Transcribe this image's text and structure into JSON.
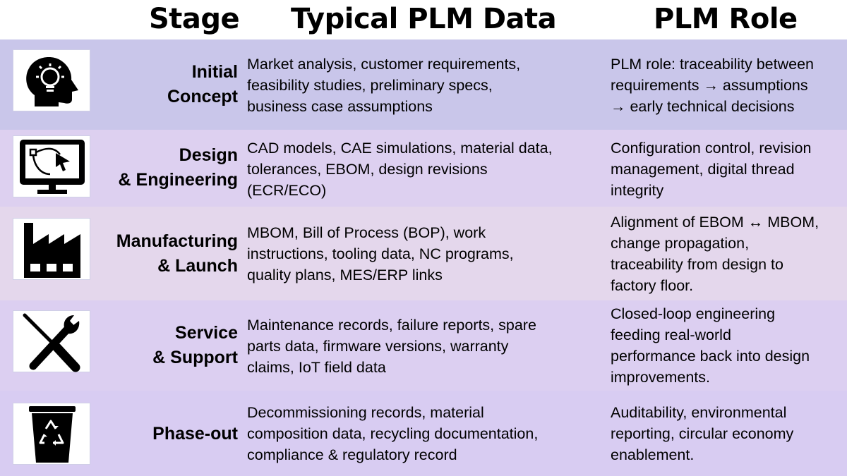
{
  "header": {
    "stage": "Stage",
    "data": "Typical PLM Data",
    "role": "PLM Role"
  },
  "colors": {
    "row1": "#c9c6ea",
    "row2": "#ddd0f0",
    "row3": "#e4d7ec",
    "row4": "#dccff1",
    "row5": "#d8ccf2",
    "icon_fill": "#000000"
  },
  "rows": [
    {
      "icon": "idea-head-icon",
      "stage": [
        "Initial",
        "Concept"
      ],
      "data": [
        "Market analysis, customer requirements,",
        "feasibility studies, preliminary specs,",
        "business case assumptions"
      ],
      "role": [
        "PLM role: traceability between",
        "requirements → assumptions",
        "→ early technical decisions"
      ]
    },
    {
      "icon": "cad-monitor-icon",
      "stage": [
        "Design",
        "& Engineering"
      ],
      "data": [
        "CAD models, CAE simulations, material data,",
        "tolerances, EBOM, design revisions",
        "(ECR/ECO)"
      ],
      "role": [
        "Configuration control, revision",
        "management, digital thread",
        "integrity"
      ]
    },
    {
      "icon": "factory-icon",
      "stage": [
        "Manufacturing",
        "& Launch"
      ],
      "data": [
        "MBOM, Bill of Process (BOP), work",
        "instructions, tooling data, NC programs,",
        "quality plans, MES/ERP links"
      ],
      "role": [
        "Alignment of EBOM ↔ MBOM,",
        "change propagation,",
        "traceability from design to",
        "factory floor."
      ]
    },
    {
      "icon": "wrench-screwdriver-icon",
      "stage": [
        "Service",
        "& Support"
      ],
      "data": [
        "Maintenance records, failure reports, spare",
        "parts data, firmware versions, warranty",
        "claims, IoT field data"
      ],
      "role": [
        "Closed-loop engineering",
        "feeding real-world",
        "performance back into design",
        "improvements."
      ]
    },
    {
      "icon": "recycle-bin-icon",
      "stage": [
        "Phase-out"
      ],
      "data": [
        "Decommissioning records, material",
        "composition data, recycling documentation,",
        "compliance & regulatory record"
      ],
      "role": [
        "Auditability, environmental",
        "reporting, circular economy",
        "enablement."
      ]
    }
  ]
}
